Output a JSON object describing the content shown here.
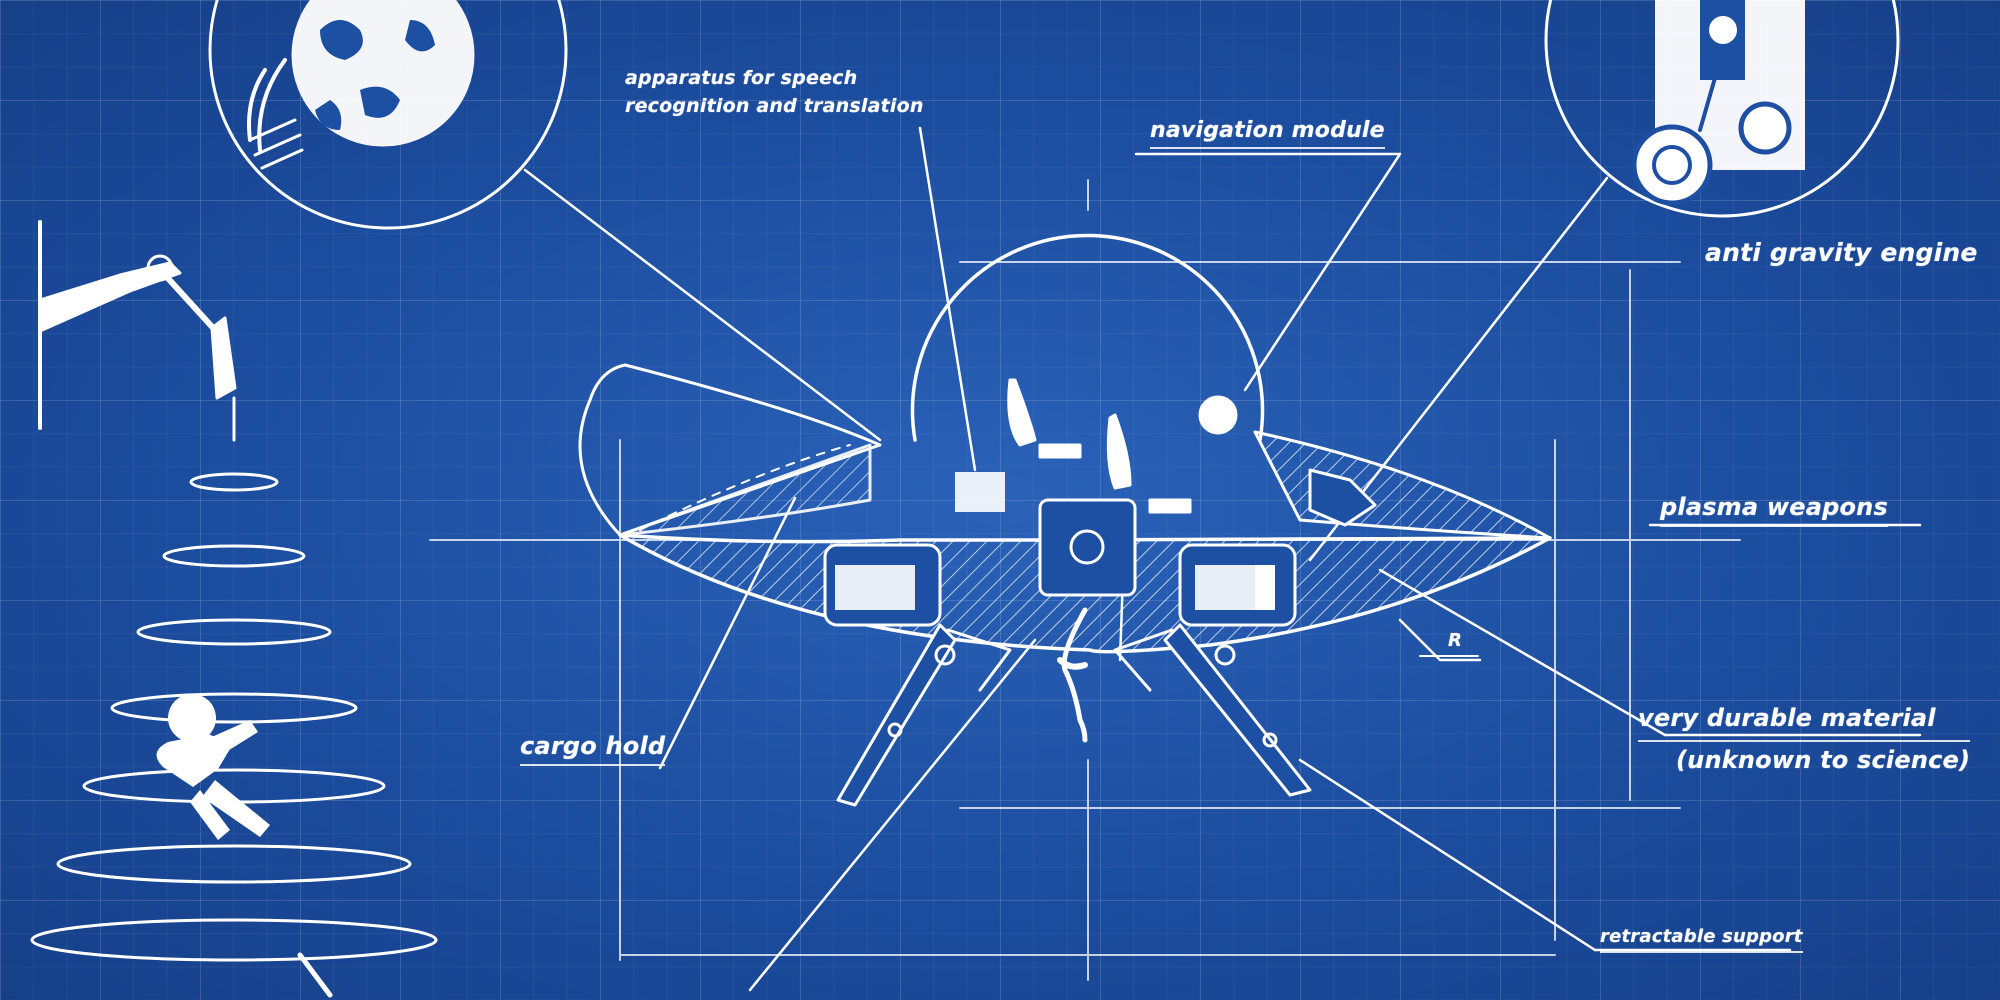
{
  "theme": {
    "background": "#1d4fa3",
    "line": "#ffffff"
  },
  "labels": {
    "speech": [
      "apparatus for speech",
      "recognition and translation"
    ],
    "navigation": "navigation module",
    "anti_gravity": "anti gravity engine",
    "plasma": "plasma weapons",
    "cargo": "cargo hold",
    "material": [
      "very durable material",
      "(unknown to science)"
    ],
    "support": "retractable support",
    "radius_mark": "R"
  }
}
